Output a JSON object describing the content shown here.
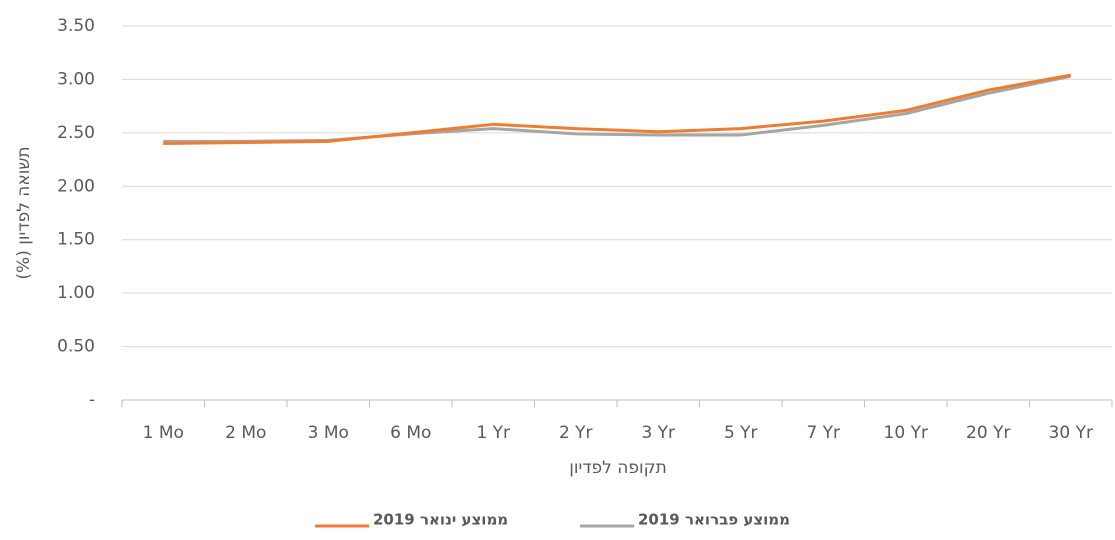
{
  "chart_data": {
    "type": "line",
    "y_label": "תשואה לפדיון (%)",
    "x_label": "תקופה לפדיון",
    "categories": [
      "1 Mo",
      "2 Mo",
      "3 Mo",
      "6 Mo",
      "1 Yr",
      "2 Yr",
      "3 Yr",
      "5 Yr",
      "7 Yr",
      "10 Yr",
      "20 Yr",
      "30 Yr"
    ],
    "series": [
      {
        "name": "ממוצע ינואר 2019",
        "color": "#ed7d31",
        "values": [
          2.4,
          2.41,
          2.42,
          2.5,
          2.58,
          2.54,
          2.51,
          2.54,
          2.61,
          2.71,
          2.9,
          3.04
        ]
      },
      {
        "name": "ממוצע פברואר 2019",
        "color": "#a5a5a5",
        "values": [
          2.42,
          2.42,
          2.43,
          2.49,
          2.54,
          2.49,
          2.48,
          2.48,
          2.57,
          2.68,
          2.87,
          3.03
        ]
      }
    ],
    "ylim": [
      0,
      3.5
    ],
    "yticks": [
      {
        "value": 0,
        "label": "-"
      },
      {
        "value": 0.5,
        "label": "0.50"
      },
      {
        "value": 1,
        "label": "1.00"
      },
      {
        "value": 1.5,
        "label": "1.50"
      },
      {
        "value": 2,
        "label": "2.00"
      },
      {
        "value": 2.5,
        "label": "2.50"
      },
      {
        "value": 3,
        "label": "3.00"
      },
      {
        "value": 3.5,
        "label": "3.50"
      }
    ],
    "grid": true,
    "legend": "bottom"
  }
}
